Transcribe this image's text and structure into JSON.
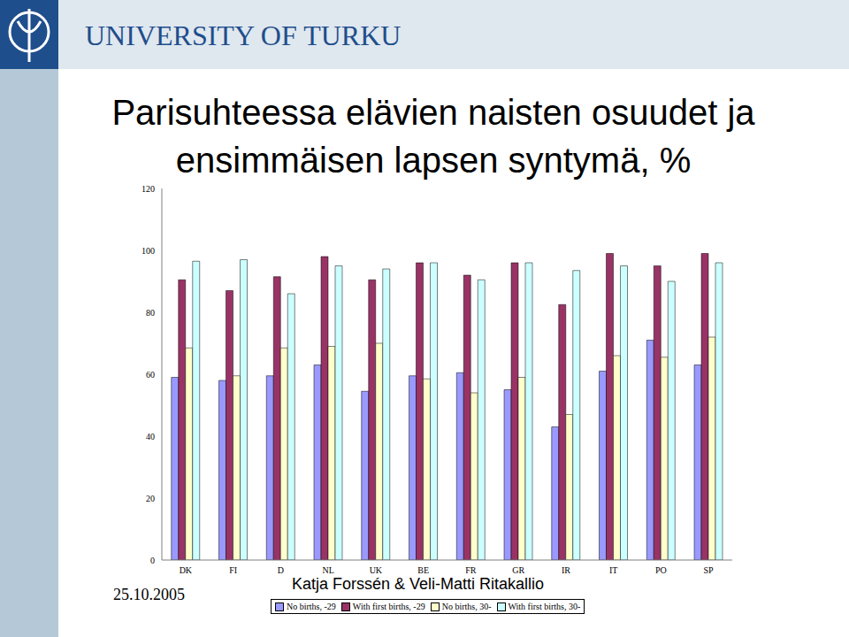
{
  "header": {
    "institution": "UNIVERSITY OF TURKU"
  },
  "chart_data": {
    "type": "bar",
    "title": "Parisuhteessa elävien naisten osuudet ja\nensimmäisen lapsen syntymä, %",
    "categories": [
      "DK",
      "FI",
      "D",
      "NL",
      "UK",
      "BE",
      "FR",
      "GR",
      "IR",
      "IT",
      "PO",
      "SP"
    ],
    "series": [
      {
        "name": "No births, -29",
        "color": "#9999ff",
        "values": [
          59,
          58,
          59.5,
          63,
          54.5,
          59.5,
          60.5,
          55,
          43,
          61,
          71,
          63
        ]
      },
      {
        "name": "With first births, -29",
        "color": "#993366",
        "values": [
          90.5,
          87,
          91.5,
          98,
          90.5,
          96,
          92,
          96,
          82.5,
          99,
          95,
          99
        ]
      },
      {
        "name": "No births, 30-",
        "color": "#ffffcc",
        "values": [
          68.5,
          59.5,
          68.5,
          69,
          70,
          58.5,
          54,
          59,
          47,
          66,
          65.5,
          72
        ]
      },
      {
        "name": "With first births, 30-",
        "color": "#ccffff",
        "values": [
          96.5,
          97,
          86,
          95,
          94,
          96,
          90.5,
          96,
          93.5,
          95,
          90,
          96
        ]
      }
    ],
    "ylim": [
      0,
      120
    ],
    "yticks": [
      0,
      20,
      40,
      60,
      80,
      100,
      120
    ],
    "grid": false,
    "legend": "bottom"
  },
  "footer": {
    "date": "25.10.2005",
    "author": "Katja Forssén & Veli-Matti Ritakallio"
  }
}
